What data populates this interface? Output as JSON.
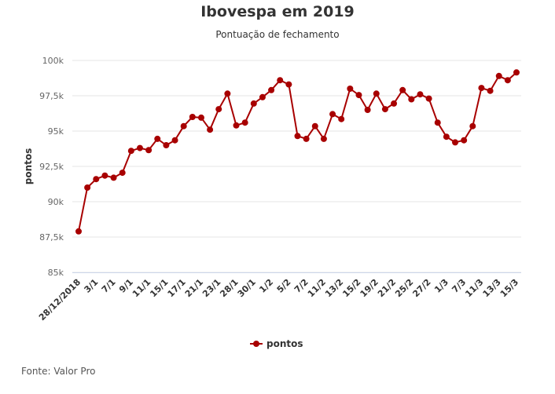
{
  "title": "Ibovespa em 2019",
  "subtitle": "Pontuação de fechamento",
  "source": "Fonte: Valor Pro",
  "colors": {
    "series": "#a80000",
    "grid": "#e6e6e6",
    "axis": "#ccd6eb",
    "text": "#333333",
    "tick": "#666666"
  },
  "chart_data": {
    "type": "line",
    "title": "Ibovespa em 2019",
    "subtitle": "Pontuação de fechamento",
    "ylabel": "pontos",
    "xlabel": "",
    "ylim": [
      85000,
      100000
    ],
    "yticks": [
      85000,
      87500,
      90000,
      92500,
      95000,
      97500,
      100000
    ],
    "ytick_labels": [
      "85k",
      "87,5k",
      "90k",
      "92,5k",
      "95k",
      "97,5k",
      "100k"
    ],
    "xtick_labels": [
      "28/12/2018",
      "3/1",
      "7/1",
      "9/1",
      "11/1",
      "15/1",
      "17/1",
      "21/1",
      "23/1",
      "28/1",
      "30/1",
      "1/2",
      "5/2",
      "7/2",
      "11/2",
      "13/2",
      "15/2",
      "19/2",
      "21/2",
      "25/2",
      "27/2",
      "1/3",
      "7/3",
      "11/3",
      "13/3",
      "15/3"
    ],
    "legend": "bottom-center",
    "grid": true,
    "series": [
      {
        "name": "pontos",
        "values": [
          87900,
          91000,
          91600,
          91850,
          91700,
          92050,
          93600,
          93800,
          93650,
          94450,
          94000,
          94350,
          95350,
          96000,
          95950,
          95100,
          96550,
          97650,
          95400,
          95600,
          96950,
          97400,
          97900,
          98600,
          98300,
          94650,
          94450,
          95350,
          94450,
          96200,
          95850,
          98000,
          97550,
          96500,
          97650,
          96550,
          96950,
          97900,
          97250,
          97600,
          97300,
          95600,
          94600,
          94200,
          94350,
          95350,
          98050,
          97850,
          98900,
          98600,
          99150
        ]
      }
    ]
  }
}
